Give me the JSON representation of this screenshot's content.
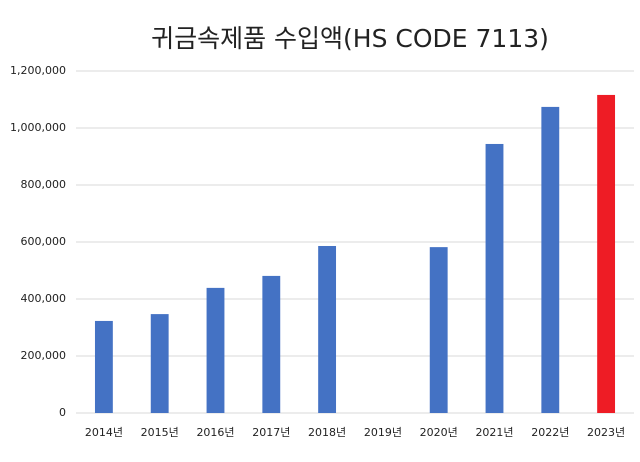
{
  "chart_data": {
    "type": "bar",
    "title": "귀금속제품 수입액(HS CODE 7113)",
    "categories": [
      "2014년",
      "2015년",
      "2016년",
      "2017년",
      "2018년",
      "2019년",
      "2020년",
      "2021년",
      "2022년",
      "2023년"
    ],
    "values": [
      323000,
      347000,
      439000,
      481000,
      586000,
      null,
      582000,
      944000,
      1074000,
      1116000
    ],
    "colors": [
      "#4472c4",
      "#4472c4",
      "#4472c4",
      "#4472c4",
      "#4472c4",
      "#4472c4",
      "#4472c4",
      "#4472c4",
      "#4472c4",
      "#ee1c25"
    ],
    "ylim": [
      0,
      1200000
    ],
    "yticks": [
      0,
      {
        "value": 200000,
        "label": "200,000"
      },
      {
        "value": 400000,
        "label": "400,000"
      },
      {
        "value": 600000,
        "label": "600,000"
      },
      {
        "value": 800000,
        "label": "800,000"
      },
      {
        "value": 1000000,
        "label": "1,000,000"
      },
      {
        "value": 1200000,
        "label": "1,200,000"
      }
    ],
    "grid": true
  }
}
